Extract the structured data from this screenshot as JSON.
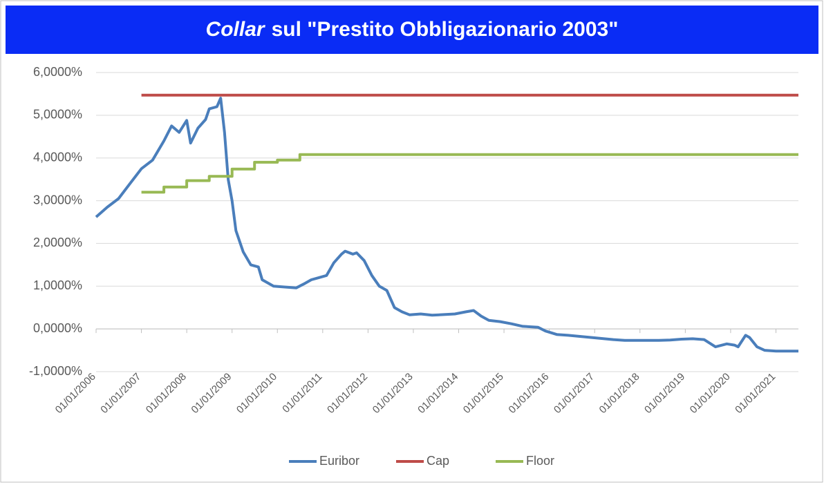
{
  "chart_data": {
    "type": "line",
    "title": {
      "italic": "Collar",
      "rest": "sul \"Prestito Obbligazionario 2003\""
    },
    "xlim": [
      "2006-01-01",
      "2021-07-01"
    ],
    "xticks": [
      {
        "value": "2006-01-01",
        "label": "01/01/2006"
      },
      {
        "value": "2007-01-01",
        "label": "01/01/2007"
      },
      {
        "value": "2008-01-01",
        "label": "01/01/2008"
      },
      {
        "value": "2009-01-01",
        "label": "01/01/2009"
      },
      {
        "value": "2010-01-01",
        "label": "01/01/2010"
      },
      {
        "value": "2011-01-01",
        "label": "01/01/2011"
      },
      {
        "value": "2012-01-01",
        "label": "01/01/2012"
      },
      {
        "value": "2013-01-01",
        "label": "01/01/2013"
      },
      {
        "value": "2014-01-01",
        "label": "01/01/2014"
      },
      {
        "value": "2015-01-01",
        "label": "01/01/2015"
      },
      {
        "value": "2016-01-01",
        "label": "01/01/2016"
      },
      {
        "value": "2017-01-01",
        "label": "01/01/2017"
      },
      {
        "value": "2018-01-01",
        "label": "01/01/2018"
      },
      {
        "value": "2019-01-01",
        "label": "01/01/2019"
      },
      {
        "value": "2020-01-01",
        "label": "01/01/2020"
      },
      {
        "value": "2021-01-01",
        "label": "01/01/2021"
      }
    ],
    "ylim": [
      -1,
      6
    ],
    "yticks": [
      {
        "value": -1,
        "label": "-1,0000%"
      },
      {
        "value": 0,
        "label": "0,0000%"
      },
      {
        "value": 1,
        "label": "1,0000%"
      },
      {
        "value": 2,
        "label": "2,0000%"
      },
      {
        "value": 3,
        "label": "3,0000%"
      },
      {
        "value": 4,
        "label": "4,0000%"
      },
      {
        "value": 5,
        "label": "5,0000%"
      },
      {
        "value": 6,
        "label": "6,0000%"
      }
    ],
    "grid": true,
    "legend": "bottom",
    "series": [
      {
        "name": "Euribor",
        "color": "#4a7ebb",
        "x": [
          "2006-01-01",
          "2006-04-01",
          "2006-07-01",
          "2006-10-01",
          "2007-01-01",
          "2007-04-01",
          "2007-07-01",
          "2007-09-01",
          "2007-11-01",
          "2008-01-01",
          "2008-02-01",
          "2008-04-01",
          "2008-06-01",
          "2008-07-01",
          "2008-09-01",
          "2008-10-01",
          "2008-11-01",
          "2008-12-01",
          "2009-01-01",
          "2009-02-01",
          "2009-04-01",
          "2009-06-01",
          "2009-08-01",
          "2009-09-01",
          "2009-12-01",
          "2010-03-01",
          "2010-06-01",
          "2010-08-01",
          "2010-10-01",
          "2010-12-01",
          "2011-02-01",
          "2011-04-01",
          "2011-06-01",
          "2011-07-01",
          "2011-09-01",
          "2011-10-01",
          "2011-12-01",
          "2012-02-01",
          "2012-04-01",
          "2012-06-01",
          "2012-08-01",
          "2012-10-01",
          "2012-12-01",
          "2013-03-01",
          "2013-06-01",
          "2013-12-01",
          "2014-03-01",
          "2014-05-01",
          "2014-07-01",
          "2014-09-01",
          "2014-12-01",
          "2015-03-01",
          "2015-06-01",
          "2015-10-01",
          "2015-12-01",
          "2016-03-01",
          "2016-06-01",
          "2016-12-01",
          "2017-06-01",
          "2017-09-01",
          "2018-06-01",
          "2018-09-01",
          "2018-12-01",
          "2019-03-01",
          "2019-06-01",
          "2019-09-01",
          "2019-12-01",
          "2020-02-01",
          "2020-03-01",
          "2020-05-01",
          "2020-06-01",
          "2020-08-01",
          "2020-10-01",
          "2021-01-01",
          "2021-07-01"
        ],
        "values": [
          2.62,
          2.85,
          3.05,
          3.4,
          3.75,
          3.95,
          4.4,
          4.75,
          4.6,
          4.88,
          4.35,
          4.7,
          4.9,
          5.15,
          5.2,
          5.4,
          4.6,
          3.5,
          3.0,
          2.3,
          1.8,
          1.5,
          1.45,
          1.15,
          1.0,
          0.98,
          0.96,
          1.05,
          1.15,
          1.2,
          1.25,
          1.55,
          1.75,
          1.82,
          1.75,
          1.78,
          1.6,
          1.25,
          1.0,
          0.9,
          0.5,
          0.4,
          0.33,
          0.35,
          0.32,
          0.35,
          0.4,
          0.43,
          0.3,
          0.2,
          0.17,
          0.12,
          0.06,
          0.04,
          -0.05,
          -0.13,
          -0.15,
          -0.2,
          -0.25,
          -0.27,
          -0.27,
          -0.26,
          -0.24,
          -0.23,
          -0.25,
          -0.42,
          -0.35,
          -0.38,
          -0.42,
          -0.15,
          -0.2,
          -0.42,
          -0.5,
          -0.52,
          -0.52
        ]
      },
      {
        "name": "Cap",
        "color": "#be4b48",
        "x": [
          "2007-01-01",
          "2021-07-01"
        ],
        "values": [
          5.47,
          5.47
        ]
      },
      {
        "name": "Floor",
        "color": "#98b954",
        "x": [
          "2007-01-01",
          "2007-07-01",
          "2007-07-01",
          "2008-01-01",
          "2008-01-01",
          "2008-07-01",
          "2008-07-01",
          "2009-01-01",
          "2009-01-01",
          "2009-07-01",
          "2009-07-01",
          "2010-01-01",
          "2010-01-01",
          "2010-07-01",
          "2010-07-01",
          "2021-07-01"
        ],
        "values": [
          3.2,
          3.2,
          3.32,
          3.32,
          3.47,
          3.47,
          3.57,
          3.57,
          3.74,
          3.74,
          3.9,
          3.9,
          3.95,
          3.95,
          4.08,
          4.08
        ]
      }
    ]
  }
}
